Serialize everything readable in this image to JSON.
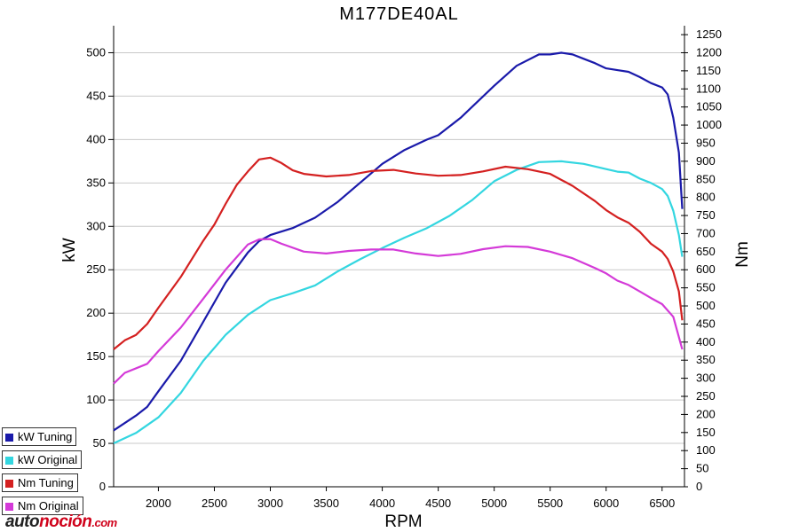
{
  "chart_data": {
    "type": "line",
    "title": "M177DE40AL",
    "xlabel": "RPM",
    "ylabel_left": "kW",
    "ylabel_right": "Nm",
    "xlim": [
      1600,
      6700
    ],
    "ylim_left": [
      0,
      525
    ],
    "ylim_right": [
      0,
      1260
    ],
    "x_ticks": [
      2000,
      2500,
      3000,
      3500,
      4000,
      4500,
      5000,
      5500,
      6000,
      6500
    ],
    "y_left_ticks": [
      0,
      50,
      100,
      150,
      200,
      250,
      300,
      350,
      400,
      450,
      500
    ],
    "y_right_ticks": [
      0,
      50,
      100,
      150,
      200,
      250,
      300,
      350,
      400,
      450,
      500,
      550,
      600,
      650,
      700,
      750,
      800,
      850,
      900,
      950,
      1000,
      1050,
      1100,
      1150,
      1200,
      1250
    ],
    "grid": true,
    "legend_position": "bottom-left",
    "series": [
      {
        "name": "kW Tuning",
        "axis": "left",
        "color": "#1a1aaa",
        "points": [
          [
            1600,
            65
          ],
          [
            1800,
            82
          ],
          [
            1900,
            92
          ],
          [
            2000,
            110
          ],
          [
            2200,
            145
          ],
          [
            2400,
            190
          ],
          [
            2600,
            235
          ],
          [
            2800,
            270
          ],
          [
            2900,
            283
          ],
          [
            3000,
            290
          ],
          [
            3200,
            298
          ],
          [
            3400,
            310
          ],
          [
            3600,
            328
          ],
          [
            3800,
            350
          ],
          [
            4000,
            372
          ],
          [
            4200,
            388
          ],
          [
            4400,
            400
          ],
          [
            4500,
            405
          ],
          [
            4700,
            425
          ],
          [
            5000,
            462
          ],
          [
            5200,
            485
          ],
          [
            5400,
            498
          ],
          [
            5500,
            498
          ],
          [
            5600,
            500
          ],
          [
            5700,
            498
          ],
          [
            5800,
            493
          ],
          [
            5900,
            488
          ],
          [
            6000,
            482
          ],
          [
            6100,
            480
          ],
          [
            6200,
            478
          ],
          [
            6300,
            472
          ],
          [
            6400,
            465
          ],
          [
            6500,
            460
          ],
          [
            6550,
            452
          ],
          [
            6600,
            425
          ],
          [
            6650,
            385
          ],
          [
            6680,
            320
          ]
        ]
      },
      {
        "name": "kW Original",
        "axis": "left",
        "color": "#33d6e0",
        "points": [
          [
            1600,
            50
          ],
          [
            1800,
            62
          ],
          [
            2000,
            80
          ],
          [
            2200,
            108
          ],
          [
            2400,
            145
          ],
          [
            2600,
            175
          ],
          [
            2800,
            198
          ],
          [
            3000,
            215
          ],
          [
            3200,
            223
          ],
          [
            3400,
            232
          ],
          [
            3600,
            248
          ],
          [
            3800,
            262
          ],
          [
            4000,
            275
          ],
          [
            4200,
            287
          ],
          [
            4400,
            298
          ],
          [
            4600,
            312
          ],
          [
            4800,
            330
          ],
          [
            5000,
            352
          ],
          [
            5200,
            365
          ],
          [
            5400,
            374
          ],
          [
            5600,
            375
          ],
          [
            5800,
            372
          ],
          [
            6000,
            366
          ],
          [
            6100,
            363
          ],
          [
            6200,
            362
          ],
          [
            6300,
            355
          ],
          [
            6400,
            350
          ],
          [
            6500,
            343
          ],
          [
            6550,
            335
          ],
          [
            6600,
            318
          ],
          [
            6650,
            290
          ],
          [
            6680,
            265
          ]
        ]
      },
      {
        "name": "Nm Tuning",
        "axis": "right",
        "color": "#d42020",
        "points": [
          [
            1600,
            380
          ],
          [
            1700,
            405
          ],
          [
            1800,
            420
          ],
          [
            1900,
            450
          ],
          [
            2000,
            495
          ],
          [
            2200,
            580
          ],
          [
            2400,
            680
          ],
          [
            2500,
            725
          ],
          [
            2600,
            782
          ],
          [
            2700,
            835
          ],
          [
            2800,
            872
          ],
          [
            2900,
            905
          ],
          [
            3000,
            910
          ],
          [
            3100,
            895
          ],
          [
            3200,
            875
          ],
          [
            3300,
            865
          ],
          [
            3500,
            858
          ],
          [
            3700,
            862
          ],
          [
            3900,
            873
          ],
          [
            4100,
            876
          ],
          [
            4300,
            866
          ],
          [
            4500,
            860
          ],
          [
            4700,
            862
          ],
          [
            4900,
            872
          ],
          [
            5100,
            885
          ],
          [
            5300,
            878
          ],
          [
            5500,
            865
          ],
          [
            5700,
            832
          ],
          [
            5900,
            790
          ],
          [
            6000,
            765
          ],
          [
            6100,
            745
          ],
          [
            6200,
            730
          ],
          [
            6300,
            705
          ],
          [
            6400,
            672
          ],
          [
            6500,
            650
          ],
          [
            6550,
            630
          ],
          [
            6600,
            595
          ],
          [
            6650,
            540
          ],
          [
            6680,
            460
          ]
        ]
      },
      {
        "name": "Nm Original",
        "axis": "right",
        "color": "#d43ad8",
        "points": [
          [
            1600,
            285
          ],
          [
            1700,
            315
          ],
          [
            1900,
            340
          ],
          [
            2000,
            375
          ],
          [
            2200,
            440
          ],
          [
            2400,
            520
          ],
          [
            2600,
            600
          ],
          [
            2800,
            670
          ],
          [
            2900,
            684
          ],
          [
            3000,
            685
          ],
          [
            3100,
            672
          ],
          [
            3300,
            650
          ],
          [
            3500,
            645
          ],
          [
            3700,
            652
          ],
          [
            3900,
            656
          ],
          [
            4100,
            656
          ],
          [
            4300,
            645
          ],
          [
            4500,
            638
          ],
          [
            4700,
            644
          ],
          [
            4900,
            657
          ],
          [
            5100,
            665
          ],
          [
            5300,
            663
          ],
          [
            5500,
            650
          ],
          [
            5700,
            632
          ],
          [
            5900,
            605
          ],
          [
            6000,
            590
          ],
          [
            6100,
            570
          ],
          [
            6200,
            558
          ],
          [
            6300,
            540
          ],
          [
            6400,
            522
          ],
          [
            6500,
            505
          ],
          [
            6600,
            470
          ],
          [
            6680,
            380
          ]
        ]
      }
    ]
  },
  "legend": {
    "items": [
      "kW Tuning",
      "kW Original",
      "Nm Tuning",
      "Nm Original"
    ]
  },
  "watermark": {
    "brand": "autonoción",
    "brand_prefix": "auto",
    "brand_suffix": "noción",
    "domain": ".com"
  }
}
